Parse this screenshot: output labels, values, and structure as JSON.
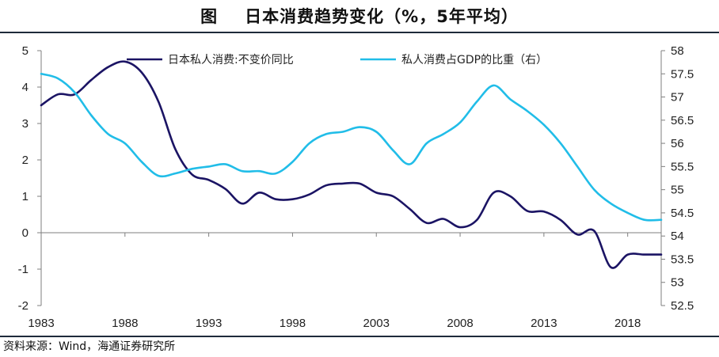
{
  "title": {
    "figure_label": "图",
    "text": "日本消费趋势变化（%，5年平均）"
  },
  "source": "资料来源：Wind，海通证券研究所",
  "colors": {
    "series_dark": "#1b1464",
    "series_light": "#21bde8",
    "rule": "#1e2a3a"
  },
  "chart_data": {
    "type": "line",
    "title": "日本消费趋势变化（%，5年平均）",
    "x_ticks": [
      "1983",
      "1988",
      "1993",
      "1998",
      "2003",
      "2008",
      "2013",
      "2018"
    ],
    "xlim": [
      1983,
      2020
    ],
    "y_left": {
      "ylim": [
        -2,
        5
      ],
      "ticks": [
        "5",
        "4",
        "3",
        "2",
        "1",
        "0",
        "-1",
        "-2"
      ]
    },
    "y_right": {
      "ylim": [
        52.5,
        58
      ],
      "ticks": [
        "58",
        "57.5",
        "57",
        "56.5",
        "56",
        "55.5",
        "55",
        "54.5",
        "54",
        "53.5",
        "53",
        "52.5"
      ]
    },
    "legend_position": "top",
    "grid": false,
    "series": [
      {
        "name": "日本私人消费:不变价同比",
        "axis": "left",
        "x": [
          1983,
          1984,
          1985,
          1986,
          1987,
          1988,
          1989,
          1990,
          1991,
          1992,
          1993,
          1994,
          1995,
          1996,
          1997,
          1998,
          1999,
          2000,
          2001,
          2002,
          2003,
          2004,
          2005,
          2006,
          2007,
          2008,
          2009,
          2010,
          2011,
          2012,
          2013,
          2014,
          2015,
          2016,
          2017,
          2018,
          2019,
          2020
        ],
        "y": [
          3.5,
          3.8,
          3.8,
          4.2,
          4.55,
          4.7,
          4.4,
          3.6,
          2.3,
          1.6,
          1.45,
          1.2,
          0.8,
          1.1,
          0.92,
          0.92,
          1.05,
          1.3,
          1.35,
          1.35,
          1.1,
          1.0,
          0.65,
          0.27,
          0.38,
          0.15,
          0.35,
          1.1,
          1.0,
          0.6,
          0.58,
          0.35,
          -0.05,
          0.05,
          -0.95,
          -0.6,
          -0.6,
          -0.6
        ]
      },
      {
        "name": "私人消费占GDP的比重（右）",
        "axis": "right",
        "x": [
          1983,
          1984,
          1985,
          1986,
          1987,
          1988,
          1989,
          1990,
          1991,
          1992,
          1993,
          1994,
          1995,
          1996,
          1997,
          1998,
          1999,
          2000,
          2001,
          2002,
          2003,
          2004,
          2005,
          2006,
          2007,
          2008,
          2009,
          2010,
          2011,
          2012,
          2013,
          2014,
          2015,
          2016,
          2017,
          2018,
          2019,
          2020
        ],
        "y": [
          57.5,
          57.4,
          57.1,
          56.6,
          56.2,
          56.0,
          55.6,
          55.3,
          55.35,
          55.45,
          55.5,
          55.55,
          55.4,
          55.4,
          55.35,
          55.6,
          56.0,
          56.2,
          56.25,
          56.35,
          56.25,
          55.85,
          55.55,
          56.0,
          56.2,
          56.45,
          56.9,
          57.25,
          56.95,
          56.7,
          56.4,
          56.0,
          55.5,
          55.0,
          54.7,
          54.5,
          54.35,
          54.35
        ]
      }
    ]
  }
}
